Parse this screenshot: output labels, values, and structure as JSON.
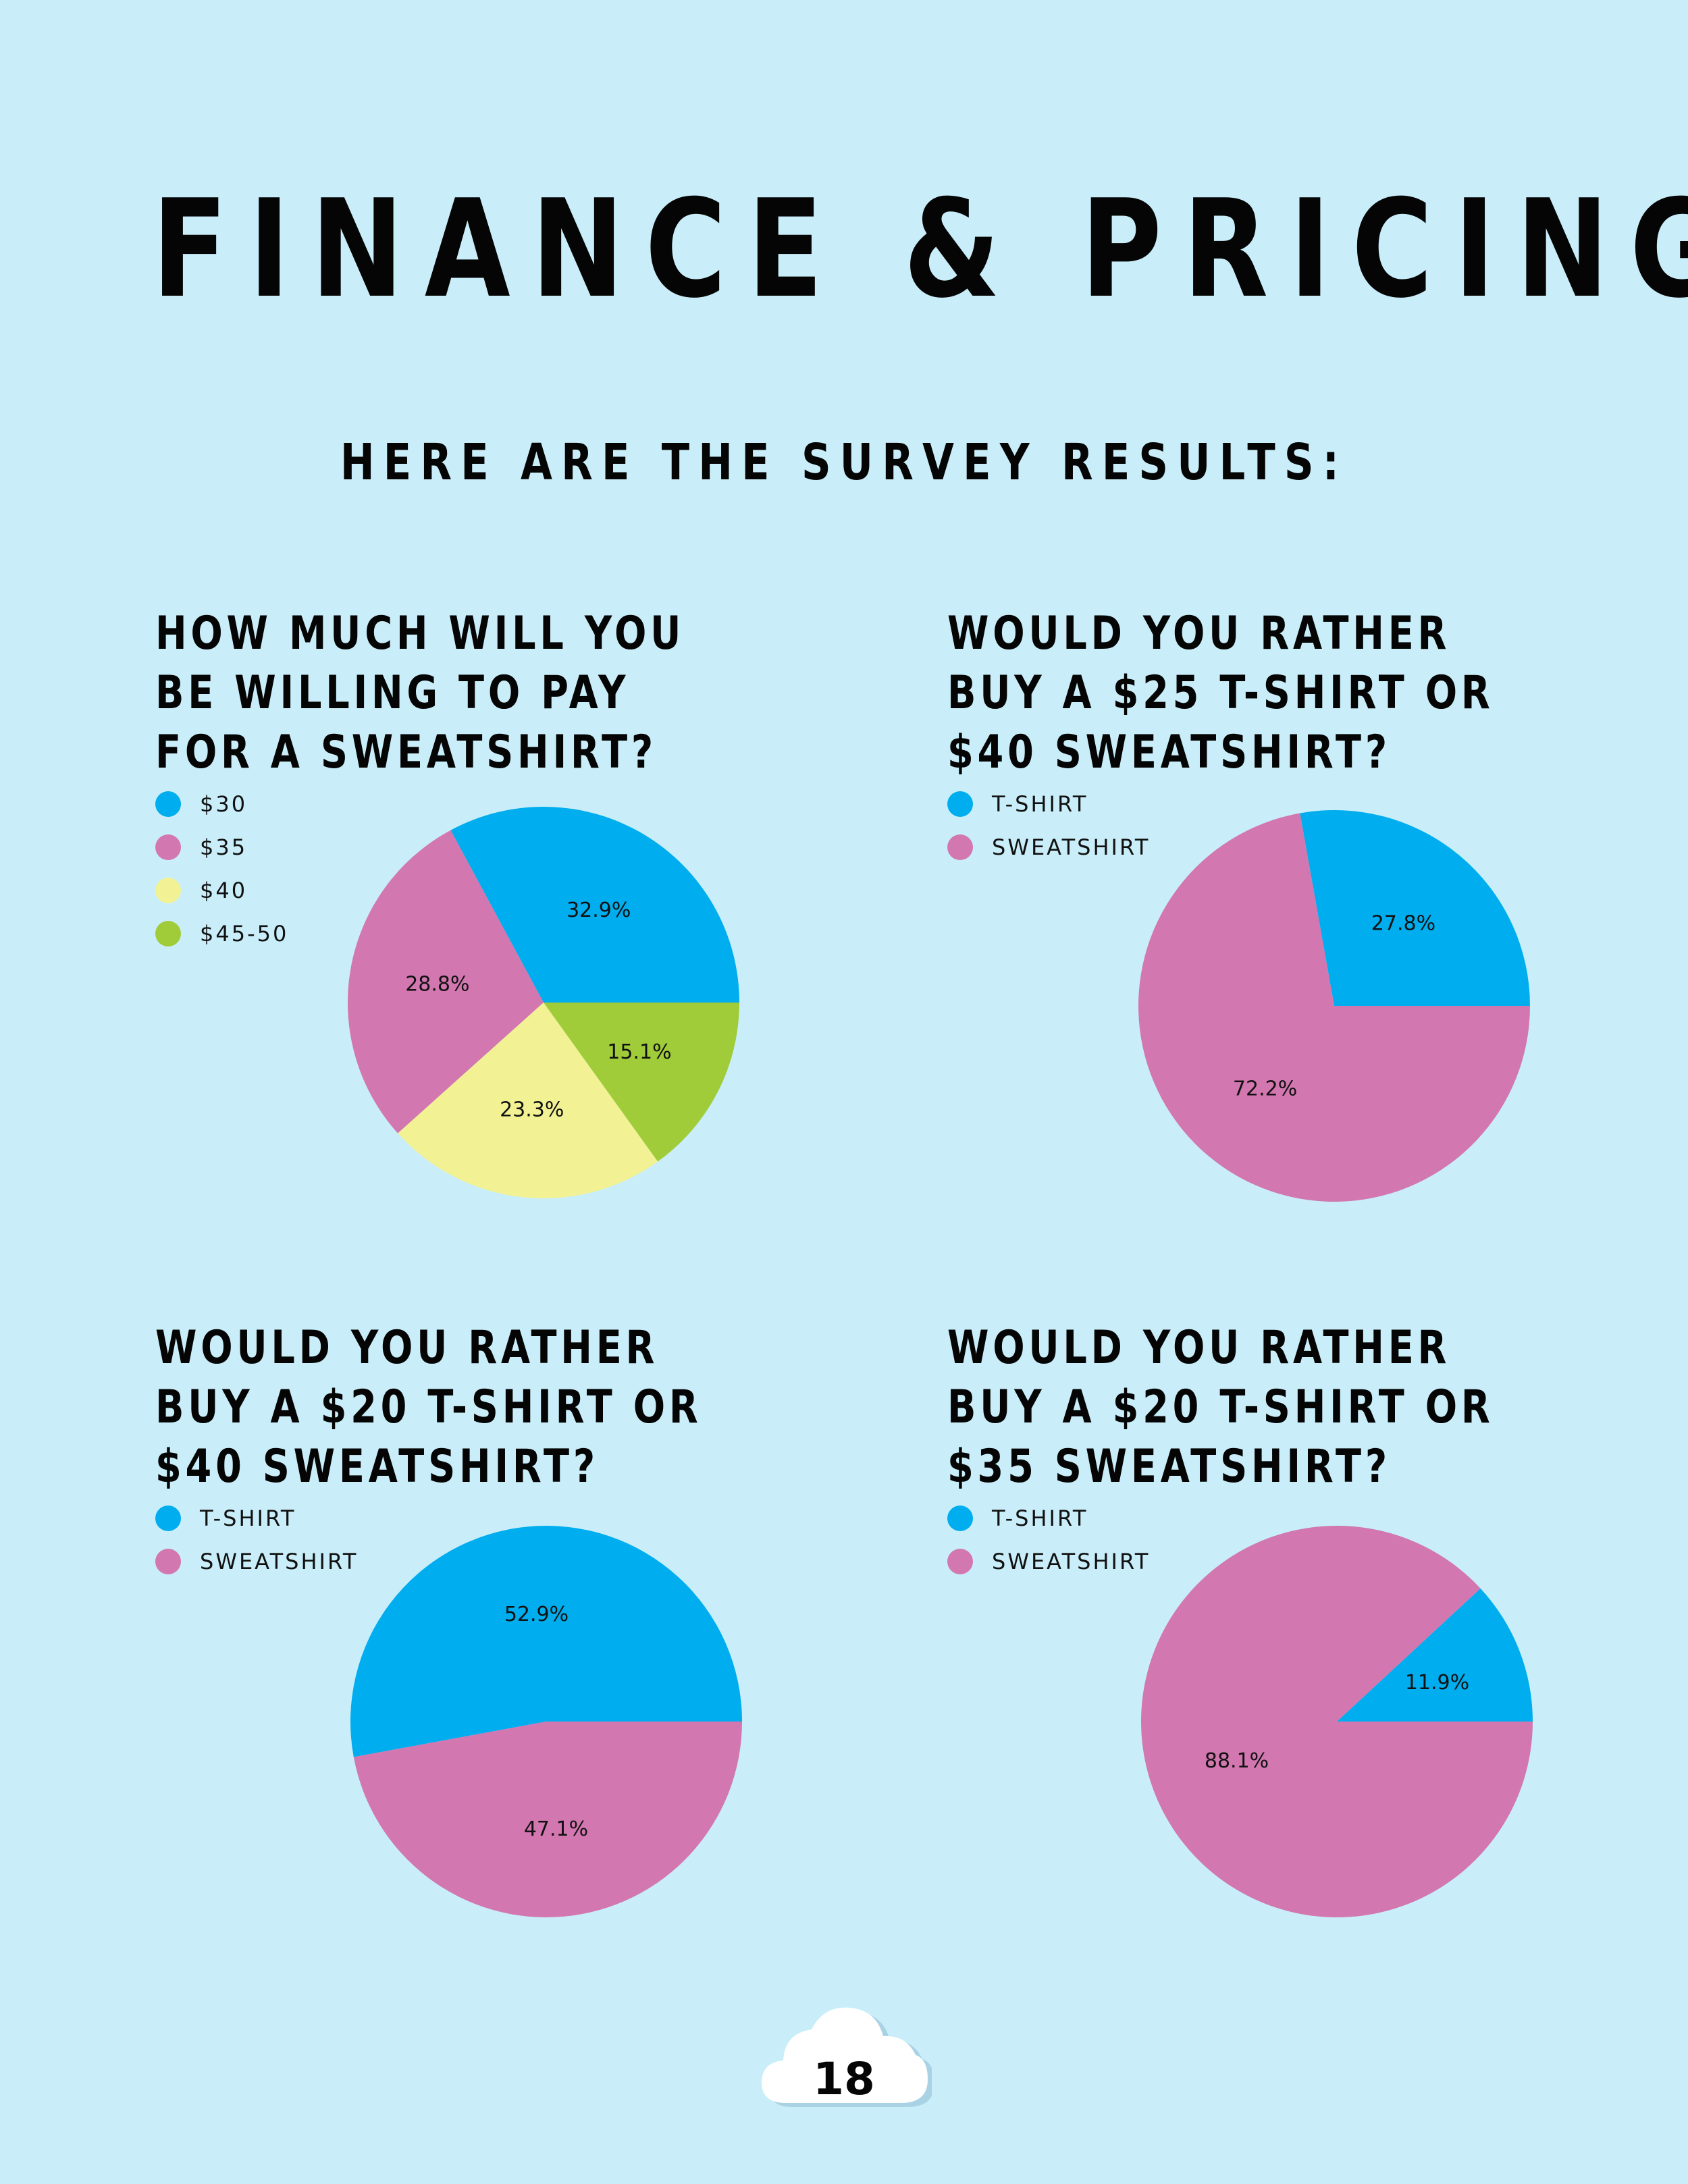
{
  "title": "FINANCE & PRICING",
  "subtitle": "HERE ARE THE SURVEY RESULTS:",
  "page_number": "18",
  "chart_data": [
    {
      "type": "pie",
      "title": [
        "HOW MUCH WILL YOU",
        "BE  WILLING TO PAY",
        "FOR A SWEATSHIRT?"
      ],
      "legend": "left",
      "categories": [
        "$30",
        "$35",
        "$40",
        "$45-50"
      ],
      "values": [
        32.9,
        28.8,
        23.3,
        15.1
      ],
      "data_labels": [
        "32.9%",
        "28.8%",
        "23.3%",
        "15.1%"
      ],
      "colors": [
        "#00adee",
        "#d277b0",
        "#f2f294",
        "#a0cc3a"
      ]
    },
    {
      "type": "pie",
      "title": [
        "WOULD YOU RATHER",
        "BUY A $25 T-SHIRT OR",
        "$40 SWEATSHIRT?"
      ],
      "legend": "left",
      "categories": [
        "T-SHIRT",
        "SWEATSHIRT"
      ],
      "values": [
        27.8,
        72.2
      ],
      "data_labels": [
        "27.8%",
        "72.2%"
      ],
      "colors": [
        "#00adee",
        "#d277b0"
      ]
    },
    {
      "type": "pie",
      "title": [
        "WOULD YOU RATHER",
        "BUY A $20 T-SHIRT OR",
        "$40 SWEATSHIRT?"
      ],
      "legend": "left",
      "categories": [
        "T-SHIRT",
        "SWEATSHIRT"
      ],
      "values": [
        52.9,
        47.1
      ],
      "data_labels": [
        "52.9%",
        "47.1%"
      ],
      "colors": [
        "#00adee",
        "#d277b0"
      ]
    },
    {
      "type": "pie",
      "title": [
        "WOULD YOU RATHER",
        "BUY A $20 T-SHIRT OR",
        "$35 SWEATSHIRT?"
      ],
      "legend": "left",
      "categories": [
        "T-SHIRT",
        "SWEATSHIRT"
      ],
      "values": [
        11.9,
        88.1
      ],
      "data_labels": [
        "11.9%",
        "88.1%"
      ],
      "colors": [
        "#00adee",
        "#d277b0"
      ]
    }
  ]
}
